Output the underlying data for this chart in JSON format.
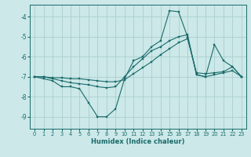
{
  "xlabel": "Humidex (Indice chaleur)",
  "background_color": "#cce8e8",
  "grid_color": "#aacece",
  "line_color": "#1a6b6b",
  "xlim": [
    -0.5,
    23.5
  ],
  "ylim": [
    -9.6,
    -3.4
  ],
  "yticks": [
    -9,
    -8,
    -7,
    -6,
    -5,
    -4
  ],
  "xticks": [
    0,
    1,
    2,
    3,
    4,
    5,
    6,
    7,
    8,
    9,
    10,
    11,
    12,
    13,
    14,
    15,
    16,
    17,
    18,
    19,
    20,
    21,
    22,
    23
  ],
  "line1_x": [
    0,
    1,
    2,
    3,
    4,
    5,
    6,
    7,
    8,
    9,
    10,
    11,
    12,
    13,
    14,
    15,
    16,
    17,
    18,
    19,
    20,
    21,
    22,
    23
  ],
  "line1_y": [
    -7.0,
    -7.1,
    -7.2,
    -7.5,
    -7.5,
    -7.6,
    -8.3,
    -9.0,
    -9.0,
    -8.6,
    -7.1,
    -6.2,
    -6.0,
    -5.5,
    -5.2,
    -3.7,
    -3.75,
    -5.0,
    -6.9,
    -7.0,
    -5.4,
    -6.2,
    -6.5,
    -7.0
  ],
  "line2_x": [
    0,
    1,
    2,
    3,
    4,
    5,
    6,
    7,
    8,
    9,
    10,
    11,
    12,
    13,
    14,
    15,
    16,
    17,
    18,
    19,
    20,
    21,
    22,
    23
  ],
  "line2_y": [
    -7.0,
    -7.0,
    -7.1,
    -7.2,
    -7.3,
    -7.35,
    -7.4,
    -7.5,
    -7.55,
    -7.5,
    -7.0,
    -6.5,
    -6.1,
    -5.7,
    -5.5,
    -5.2,
    -5.0,
    -4.9,
    -6.9,
    -7.0,
    -6.9,
    -6.8,
    -6.7,
    -7.0
  ],
  "line3_x": [
    0,
    1,
    2,
    3,
    4,
    5,
    6,
    7,
    8,
    9,
    10,
    11,
    12,
    13,
    14,
    15,
    16,
    17,
    18,
    19,
    20,
    21,
    22,
    23
  ],
  "line3_y": [
    -7.0,
    -7.0,
    -7.05,
    -7.05,
    -7.1,
    -7.1,
    -7.15,
    -7.2,
    -7.25,
    -7.25,
    -7.15,
    -6.85,
    -6.55,
    -6.25,
    -5.9,
    -5.6,
    -5.3,
    -5.1,
    -6.8,
    -6.85,
    -6.8,
    -6.75,
    -6.5,
    -7.0
  ]
}
